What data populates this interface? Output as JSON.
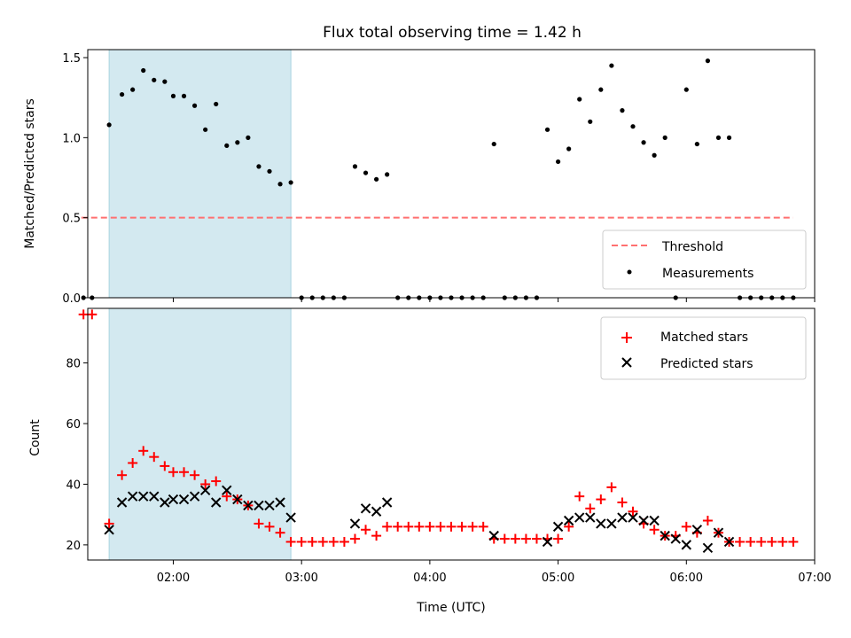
{
  "chart_data": [
    {
      "type": "scatter",
      "title": "Flux total observing time = 1.42 h",
      "ylabel": "Matched/Predicted stars",
      "xlabel": "",
      "xlim": [
        "01:20",
        "07:00"
      ],
      "ylim": [
        0,
        1.55
      ],
      "x_ticks": [
        "02:00",
        "03:00",
        "04:00",
        "05:00",
        "06:00",
        "07:00"
      ],
      "y_ticks": [
        "0.0",
        "0.5",
        "1.0",
        "1.5"
      ],
      "shaded_region": {
        "start": "01:30",
        "end": "02:55",
        "color": "#d3e9f0"
      },
      "threshold": {
        "name": "Threshold",
        "value": 0.5,
        "x_start": "01:17",
        "x_end": "06:50",
        "color": "#ff7070",
        "style": "dashed"
      },
      "legend": {
        "position": "lower-right",
        "entries": [
          "Threshold",
          "Measurements"
        ]
      },
      "series": [
        {
          "name": "Measurements",
          "color": "#000000",
          "marker": "dot",
          "points": [
            [
              "01:18",
              0
            ],
            [
              "01:22",
              0
            ],
            [
              "01:30",
              1.08
            ],
            [
              "01:36",
              1.27
            ],
            [
              "01:41",
              1.3
            ],
            [
              "01:46",
              1.42
            ],
            [
              "01:51",
              1.36
            ],
            [
              "01:56",
              1.35
            ],
            [
              "02:00",
              1.26
            ],
            [
              "02:05",
              1.26
            ],
            [
              "02:10",
              1.2
            ],
            [
              "02:15",
              1.05
            ],
            [
              "02:20",
              1.21
            ],
            [
              "02:25",
              0.95
            ],
            [
              "02:30",
              0.97
            ],
            [
              "02:35",
              1.0
            ],
            [
              "02:40",
              0.82
            ],
            [
              "02:45",
              0.79
            ],
            [
              "02:50",
              0.71
            ],
            [
              "02:55",
              0.72
            ],
            [
              "03:00",
              0
            ],
            [
              "03:05",
              0
            ],
            [
              "03:10",
              0
            ],
            [
              "03:15",
              0
            ],
            [
              "03:20",
              0
            ],
            [
              "03:25",
              0.82
            ],
            [
              "03:30",
              0.78
            ],
            [
              "03:35",
              0.74
            ],
            [
              "03:40",
              0.77
            ],
            [
              "03:45",
              0
            ],
            [
              "03:50",
              0
            ],
            [
              "03:55",
              0
            ],
            [
              "04:00",
              0
            ],
            [
              "04:05",
              0
            ],
            [
              "04:10",
              0
            ],
            [
              "04:15",
              0
            ],
            [
              "04:20",
              0
            ],
            [
              "04:25",
              0
            ],
            [
              "04:30",
              0.96
            ],
            [
              "04:35",
              0
            ],
            [
              "04:40",
              0
            ],
            [
              "04:45",
              0
            ],
            [
              "04:50",
              0
            ],
            [
              "04:55",
              1.05
            ],
            [
              "05:00",
              0.85
            ],
            [
              "05:05",
              0.93
            ],
            [
              "05:10",
              1.24
            ],
            [
              "05:15",
              1.1
            ],
            [
              "05:20",
              1.3
            ],
            [
              "05:25",
              1.45
            ],
            [
              "05:30",
              1.17
            ],
            [
              "05:35",
              1.07
            ],
            [
              "05:40",
              0.97
            ],
            [
              "05:45",
              0.89
            ],
            [
              "05:50",
              1.0
            ],
            [
              "05:55",
              0
            ],
            [
              "06:00",
              1.3
            ],
            [
              "06:05",
              0.96
            ],
            [
              "06:10",
              1.48
            ],
            [
              "06:15",
              1.0
            ],
            [
              "06:20",
              1.0
            ],
            [
              "06:25",
              0
            ],
            [
              "06:30",
              0
            ],
            [
              "06:35",
              0
            ],
            [
              "06:40",
              0
            ],
            [
              "06:45",
              0
            ],
            [
              "06:50",
              0
            ]
          ]
        }
      ]
    },
    {
      "type": "scatter",
      "title": "",
      "ylabel": "Count",
      "xlabel": "Time (UTC)",
      "xlim": [
        "01:20",
        "07:00"
      ],
      "ylim": [
        15,
        98
      ],
      "x_ticks": [
        "02:00",
        "03:00",
        "04:00",
        "05:00",
        "06:00",
        "07:00"
      ],
      "y_ticks": [
        "20",
        "40",
        "60",
        "80"
      ],
      "shaded_region": {
        "start": "01:30",
        "end": "02:55",
        "color": "#d3e9f0"
      },
      "legend": {
        "position": "top-right",
        "entries": [
          "Matched stars",
          "Predicted stars"
        ]
      },
      "series": [
        {
          "name": "Matched stars",
          "color": "#ff0000",
          "marker": "plus",
          "points": [
            [
              "01:18",
              96
            ],
            [
              "01:22",
              96
            ],
            [
              "01:30",
              27
            ],
            [
              "01:36",
              43
            ],
            [
              "01:41",
              47
            ],
            [
              "01:46",
              51
            ],
            [
              "01:51",
              49
            ],
            [
              "01:56",
              46
            ],
            [
              "02:00",
              44
            ],
            [
              "02:05",
              44
            ],
            [
              "02:10",
              43
            ],
            [
              "02:15",
              40
            ],
            [
              "02:20",
              41
            ],
            [
              "02:25",
              36
            ],
            [
              "02:30",
              35
            ],
            [
              "02:35",
              33
            ],
            [
              "02:40",
              27
            ],
            [
              "02:45",
              26
            ],
            [
              "02:50",
              24
            ],
            [
              "02:55",
              21
            ],
            [
              "03:00",
              21
            ],
            [
              "03:05",
              21
            ],
            [
              "03:10",
              21
            ],
            [
              "03:15",
              21
            ],
            [
              "03:20",
              21
            ],
            [
              "03:25",
              22
            ],
            [
              "03:30",
              25
            ],
            [
              "03:35",
              23
            ],
            [
              "03:40",
              26
            ],
            [
              "03:45",
              26
            ],
            [
              "03:50",
              26
            ],
            [
              "03:55",
              26
            ],
            [
              "04:00",
              26
            ],
            [
              "04:05",
              26
            ],
            [
              "04:10",
              26
            ],
            [
              "04:15",
              26
            ],
            [
              "04:20",
              26
            ],
            [
              "04:25",
              26
            ],
            [
              "04:30",
              22
            ],
            [
              "04:35",
              22
            ],
            [
              "04:40",
              22
            ],
            [
              "04:45",
              22
            ],
            [
              "04:50",
              22
            ],
            [
              "04:55",
              22
            ],
            [
              "05:00",
              22
            ],
            [
              "05:05",
              26
            ],
            [
              "05:10",
              36
            ],
            [
              "05:15",
              32
            ],
            [
              "05:20",
              35
            ],
            [
              "05:25",
              39
            ],
            [
              "05:30",
              34
            ],
            [
              "05:35",
              31
            ],
            [
              "05:40",
              27
            ],
            [
              "05:45",
              25
            ],
            [
              "05:50",
              23
            ],
            [
              "05:55",
              23
            ],
            [
              "06:00",
              26
            ],
            [
              "06:05",
              24
            ],
            [
              "06:10",
              28
            ],
            [
              "06:15",
              24
            ],
            [
              "06:20",
              21
            ],
            [
              "06:25",
              21
            ],
            [
              "06:30",
              21
            ],
            [
              "06:35",
              21
            ],
            [
              "06:40",
              21
            ],
            [
              "06:45",
              21
            ],
            [
              "06:50",
              21
            ]
          ]
        },
        {
          "name": "Predicted stars",
          "color": "#000000",
          "marker": "x",
          "points": [
            [
              "01:30",
              25
            ],
            [
              "01:36",
              34
            ],
            [
              "01:41",
              36
            ],
            [
              "01:46",
              36
            ],
            [
              "01:51",
              36
            ],
            [
              "01:56",
              34
            ],
            [
              "02:00",
              35
            ],
            [
              "02:05",
              35
            ],
            [
              "02:10",
              36
            ],
            [
              "02:15",
              38
            ],
            [
              "02:20",
              34
            ],
            [
              "02:25",
              38
            ],
            [
              "02:30",
              35
            ],
            [
              "02:35",
              33
            ],
            [
              "02:40",
              33
            ],
            [
              "02:45",
              33
            ],
            [
              "02:50",
              34
            ],
            [
              "02:55",
              29
            ],
            [
              "03:25",
              27
            ],
            [
              "03:30",
              32
            ],
            [
              "03:35",
              31
            ],
            [
              "03:40",
              34
            ],
            [
              "04:30",
              23
            ],
            [
              "04:55",
              21
            ],
            [
              "05:00",
              26
            ],
            [
              "05:05",
              28
            ],
            [
              "05:10",
              29
            ],
            [
              "05:15",
              29
            ],
            [
              "05:20",
              27
            ],
            [
              "05:25",
              27
            ],
            [
              "05:30",
              29
            ],
            [
              "05:35",
              29
            ],
            [
              "05:40",
              28
            ],
            [
              "05:45",
              28
            ],
            [
              "05:50",
              23
            ],
            [
              "05:55",
              22
            ],
            [
              "06:00",
              20
            ],
            [
              "06:05",
              25
            ],
            [
              "06:10",
              19
            ],
            [
              "06:15",
              24
            ],
            [
              "06:20",
              21
            ]
          ]
        }
      ]
    }
  ]
}
